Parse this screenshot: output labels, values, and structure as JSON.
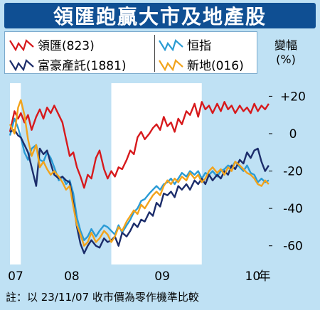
{
  "header": {
    "title": "領匯跑贏大市及地產股"
  },
  "legend": {
    "items": [
      {
        "label": "領匯(823)",
        "color": "#d7191c",
        "icon": "zigzag-line-icon"
      },
      {
        "label": "恒指",
        "color": "#2a9bd5",
        "icon": "zigzag-line-icon"
      },
      {
        "label": "富豪產託(1881)",
        "color": "#1c2d6b",
        "icon": "zigzag-line-icon"
      },
      {
        "label": "新地(016)",
        "color": "#f2a31b",
        "icon": "zigzag-line-icon"
      }
    ]
  },
  "unit": {
    "line1": "變幅",
    "line2": "(%)"
  },
  "footnote": "註：以 23/11/07 收市價為零作機準比較",
  "chart_data": {
    "type": "line",
    "title": "領匯跑贏大市及地產股",
    "xlabel": "年",
    "ylabel": "變幅(%)",
    "ylim": [
      -70,
      27
    ],
    "xlim": [
      2007.88,
      2010.78
    ],
    "x_ticks": [
      {
        "x": 2007.88,
        "label": "07"
      },
      {
        "x": 2008.5,
        "label": "08"
      },
      {
        "x": 2009.5,
        "label": "09"
      },
      {
        "x": 2010.5,
        "label": "10"
      }
    ],
    "x_axis_suffix": "年",
    "y_ticks": [
      {
        "y": 20,
        "label": "+20"
      },
      {
        "y": 0,
        "label": "0"
      },
      {
        "y": -20,
        "label": "-20"
      },
      {
        "y": -40,
        "label": "-40"
      },
      {
        "y": -60,
        "label": "-60"
      }
    ],
    "shaded_years": [
      [
        2008.0,
        2009.0
      ],
      [
        2010.0,
        2010.78
      ]
    ],
    "colors": {
      "shade": "#bfe1f4",
      "plot_bg": "#ffffff",
      "frame": "#bfe1f4"
    },
    "series": [
      {
        "name": "領匯(823)",
        "color": "#d7191c",
        "points": [
          [
            2007.88,
            1
          ],
          [
            2007.93,
            12
          ],
          [
            2007.97,
            8
          ],
          [
            2008.0,
            11
          ],
          [
            2008.04,
            6
          ],
          [
            2008.08,
            10
          ],
          [
            2008.12,
            2
          ],
          [
            2008.17,
            9
          ],
          [
            2008.21,
            13
          ],
          [
            2008.25,
            8
          ],
          [
            2008.29,
            14
          ],
          [
            2008.33,
            11
          ],
          [
            2008.37,
            15
          ],
          [
            2008.42,
            10
          ],
          [
            2008.46,
            6
          ],
          [
            2008.5,
            -3
          ],
          [
            2008.54,
            -12
          ],
          [
            2008.58,
            -10
          ],
          [
            2008.62,
            -18
          ],
          [
            2008.66,
            -23
          ],
          [
            2008.7,
            -29
          ],
          [
            2008.74,
            -22
          ],
          [
            2008.78,
            -24
          ],
          [
            2008.83,
            -13
          ],
          [
            2008.87,
            -9
          ],
          [
            2008.92,
            -19
          ],
          [
            2008.96,
            -24
          ],
          [
            2009.0,
            -20
          ],
          [
            2009.04,
            -23
          ],
          [
            2009.08,
            -18
          ],
          [
            2009.12,
            -19
          ],
          [
            2009.17,
            -14
          ],
          [
            2009.21,
            -9
          ],
          [
            2009.25,
            -11
          ],
          [
            2009.29,
            -2
          ],
          [
            2009.33,
            1
          ],
          [
            2009.37,
            -3
          ],
          [
            2009.42,
            0
          ],
          [
            2009.46,
            3
          ],
          [
            2009.5,
            5
          ],
          [
            2009.54,
            2
          ],
          [
            2009.58,
            9
          ],
          [
            2009.62,
            4
          ],
          [
            2009.66,
            6
          ],
          [
            2009.7,
            1
          ],
          [
            2009.74,
            8
          ],
          [
            2009.78,
            5
          ],
          [
            2009.83,
            12
          ],
          [
            2009.87,
            10
          ],
          [
            2009.92,
            16
          ],
          [
            2009.96,
            9
          ],
          [
            2010.0,
            17
          ],
          [
            2010.04,
            13
          ],
          [
            2010.08,
            15
          ],
          [
            2010.12,
            11
          ],
          [
            2010.17,
            16
          ],
          [
            2010.21,
            12
          ],
          [
            2010.25,
            17
          ],
          [
            2010.29,
            13
          ],
          [
            2010.33,
            15
          ],
          [
            2010.37,
            11
          ],
          [
            2010.42,
            15
          ],
          [
            2010.46,
            12
          ],
          [
            2010.5,
            14
          ],
          [
            2010.54,
            11
          ],
          [
            2010.58,
            16
          ],
          [
            2010.62,
            12
          ],
          [
            2010.66,
            15
          ],
          [
            2010.7,
            13
          ],
          [
            2010.74,
            16
          ]
        ]
      },
      {
        "name": "恒指",
        "color": "#2a9bd5",
        "points": [
          [
            2007.88,
            -1
          ],
          [
            2007.93,
            8
          ],
          [
            2007.97,
            3
          ],
          [
            2008.0,
            -2
          ],
          [
            2008.04,
            -10
          ],
          [
            2008.08,
            -14
          ],
          [
            2008.12,
            -8
          ],
          [
            2008.17,
            -6
          ],
          [
            2008.21,
            -14
          ],
          [
            2008.25,
            -15
          ],
          [
            2008.29,
            -10
          ],
          [
            2008.33,
            -13
          ],
          [
            2008.37,
            -18
          ],
          [
            2008.42,
            -25
          ],
          [
            2008.46,
            -23
          ],
          [
            2008.5,
            -27
          ],
          [
            2008.54,
            -25
          ],
          [
            2008.58,
            -32
          ],
          [
            2008.62,
            -45
          ],
          [
            2008.66,
            -52
          ],
          [
            2008.7,
            -57
          ],
          [
            2008.74,
            -55
          ],
          [
            2008.78,
            -51
          ],
          [
            2008.83,
            -55
          ],
          [
            2008.87,
            -52
          ],
          [
            2008.92,
            -49
          ],
          [
            2008.96,
            -50
          ],
          [
            2009.0,
            -52
          ],
          [
            2009.04,
            -54
          ],
          [
            2009.08,
            -49
          ],
          [
            2009.12,
            -53
          ],
          [
            2009.17,
            -49
          ],
          [
            2009.21,
            -46
          ],
          [
            2009.25,
            -42
          ],
          [
            2009.29,
            -40
          ],
          [
            2009.33,
            -36
          ],
          [
            2009.37,
            -35
          ],
          [
            2009.42,
            -32
          ],
          [
            2009.46,
            -30
          ],
          [
            2009.5,
            -28
          ],
          [
            2009.54,
            -30
          ],
          [
            2009.58,
            -27
          ],
          [
            2009.62,
            -26
          ],
          [
            2009.66,
            -24
          ],
          [
            2009.7,
            -27
          ],
          [
            2009.74,
            -24
          ],
          [
            2009.78,
            -21
          ],
          [
            2009.83,
            -23
          ],
          [
            2009.87,
            -20
          ],
          [
            2009.92,
            -22
          ],
          [
            2009.96,
            -20
          ],
          [
            2010.0,
            -24
          ],
          [
            2010.04,
            -21
          ],
          [
            2010.08,
            -22
          ],
          [
            2010.12,
            -20
          ],
          [
            2010.17,
            -23
          ],
          [
            2010.21,
            -20
          ],
          [
            2010.25,
            -19
          ],
          [
            2010.29,
            -17
          ],
          [
            2010.33,
            -18
          ],
          [
            2010.37,
            -15
          ],
          [
            2010.42,
            -18
          ],
          [
            2010.46,
            -20
          ],
          [
            2010.5,
            -17
          ],
          [
            2010.54,
            -21
          ],
          [
            2010.58,
            -22
          ],
          [
            2010.62,
            -26
          ],
          [
            2010.66,
            -24
          ],
          [
            2010.7,
            -26
          ],
          [
            2010.74,
            -25
          ]
        ]
      },
      {
        "name": "富豪產託(1881)",
        "color": "#1c2d6b",
        "points": [
          [
            2007.88,
            1
          ],
          [
            2007.93,
            2
          ],
          [
            2007.97,
            -1
          ],
          [
            2008.0,
            -2
          ],
          [
            2008.04,
            -6
          ],
          [
            2008.08,
            -10
          ],
          [
            2008.12,
            -18
          ],
          [
            2008.17,
            -28
          ],
          [
            2008.21,
            -8
          ],
          [
            2008.25,
            -11
          ],
          [
            2008.29,
            -9
          ],
          [
            2008.33,
            -16
          ],
          [
            2008.37,
            -22
          ],
          [
            2008.42,
            -24
          ],
          [
            2008.46,
            -23
          ],
          [
            2008.5,
            -25
          ],
          [
            2008.54,
            -26
          ],
          [
            2008.58,
            -37
          ],
          [
            2008.62,
            -50
          ],
          [
            2008.66,
            -59
          ],
          [
            2008.7,
            -64
          ],
          [
            2008.74,
            -60
          ],
          [
            2008.78,
            -57
          ],
          [
            2008.83,
            -60
          ],
          [
            2008.87,
            -61
          ],
          [
            2008.92,
            -56
          ],
          [
            2008.96,
            -58
          ],
          [
            2009.0,
            -57
          ],
          [
            2009.04,
            -55
          ],
          [
            2009.08,
            -60
          ],
          [
            2009.12,
            -53
          ],
          [
            2009.17,
            -55
          ],
          [
            2009.21,
            -52
          ],
          [
            2009.25,
            -48
          ],
          [
            2009.29,
            -50
          ],
          [
            2009.33,
            -46
          ],
          [
            2009.37,
            -47
          ],
          [
            2009.42,
            -42
          ],
          [
            2009.46,
            -44
          ],
          [
            2009.5,
            -37
          ],
          [
            2009.54,
            -39
          ],
          [
            2009.58,
            -32
          ],
          [
            2009.62,
            -33
          ],
          [
            2009.66,
            -31
          ],
          [
            2009.7,
            -34
          ],
          [
            2009.74,
            -28
          ],
          [
            2009.78,
            -30
          ],
          [
            2009.83,
            -27
          ],
          [
            2009.87,
            -30
          ],
          [
            2009.92,
            -25
          ],
          [
            2009.96,
            -27
          ],
          [
            2010.0,
            -24
          ],
          [
            2010.04,
            -27
          ],
          [
            2010.08,
            -22
          ],
          [
            2010.12,
            -25
          ],
          [
            2010.17,
            -22
          ],
          [
            2010.21,
            -24
          ],
          [
            2010.25,
            -20
          ],
          [
            2010.29,
            -22
          ],
          [
            2010.33,
            -17
          ],
          [
            2010.37,
            -19
          ],
          [
            2010.42,
            -14
          ],
          [
            2010.46,
            -16
          ],
          [
            2010.5,
            -10
          ],
          [
            2010.54,
            -13
          ],
          [
            2010.58,
            -9
          ],
          [
            2010.62,
            -8
          ],
          [
            2010.66,
            -15
          ],
          [
            2010.7,
            -20
          ],
          [
            2010.74,
            -17
          ]
        ]
      },
      {
        "name": "新地(016)",
        "color": "#f2a31b",
        "points": [
          [
            2007.88,
            5
          ],
          [
            2007.93,
            0
          ],
          [
            2007.97,
            14
          ],
          [
            2008.0,
            18
          ],
          [
            2008.04,
            10
          ],
          [
            2008.08,
            -3
          ],
          [
            2008.12,
            -12
          ],
          [
            2008.17,
            -6
          ],
          [
            2008.21,
            -18
          ],
          [
            2008.25,
            -15
          ],
          [
            2008.29,
            -19
          ],
          [
            2008.33,
            -22
          ],
          [
            2008.37,
            -20
          ],
          [
            2008.42,
            -23
          ],
          [
            2008.46,
            -26
          ],
          [
            2008.5,
            -30
          ],
          [
            2008.54,
            -28
          ],
          [
            2008.58,
            -39
          ],
          [
            2008.62,
            -49
          ],
          [
            2008.66,
            -54
          ],
          [
            2008.7,
            -60
          ],
          [
            2008.74,
            -58
          ],
          [
            2008.78,
            -53
          ],
          [
            2008.83,
            -58
          ],
          [
            2008.87,
            -56
          ],
          [
            2008.92,
            -52
          ],
          [
            2008.96,
            -54
          ],
          [
            2009.0,
            -58
          ],
          [
            2009.04,
            -55
          ],
          [
            2009.08,
            -50
          ],
          [
            2009.12,
            -52
          ],
          [
            2009.17,
            -47
          ],
          [
            2009.21,
            -44
          ],
          [
            2009.25,
            -41
          ],
          [
            2009.29,
            -43
          ],
          [
            2009.33,
            -38
          ],
          [
            2009.37,
            -40
          ],
          [
            2009.42,
            -36
          ],
          [
            2009.46,
            -33
          ],
          [
            2009.5,
            -31
          ],
          [
            2009.54,
            -33
          ],
          [
            2009.58,
            -28
          ],
          [
            2009.62,
            -25
          ],
          [
            2009.66,
            -27
          ],
          [
            2009.7,
            -24
          ],
          [
            2009.74,
            -26
          ],
          [
            2009.78,
            -23
          ],
          [
            2009.83,
            -25
          ],
          [
            2009.87,
            -21
          ],
          [
            2009.92,
            -24
          ],
          [
            2009.96,
            -22
          ],
          [
            2010.0,
            -26
          ],
          [
            2010.04,
            -24
          ],
          [
            2010.08,
            -20
          ],
          [
            2010.12,
            -18
          ],
          [
            2010.17,
            -21
          ],
          [
            2010.21,
            -19
          ],
          [
            2010.25,
            -22
          ],
          [
            2010.29,
            -18
          ],
          [
            2010.33,
            -20
          ],
          [
            2010.37,
            -15
          ],
          [
            2010.42,
            -17
          ],
          [
            2010.46,
            -19
          ],
          [
            2010.5,
            -21
          ],
          [
            2010.54,
            -22
          ],
          [
            2010.58,
            -24
          ],
          [
            2010.62,
            -27
          ],
          [
            2010.66,
            -28
          ],
          [
            2010.7,
            -25
          ],
          [
            2010.74,
            -27
          ]
        ]
      }
    ]
  }
}
